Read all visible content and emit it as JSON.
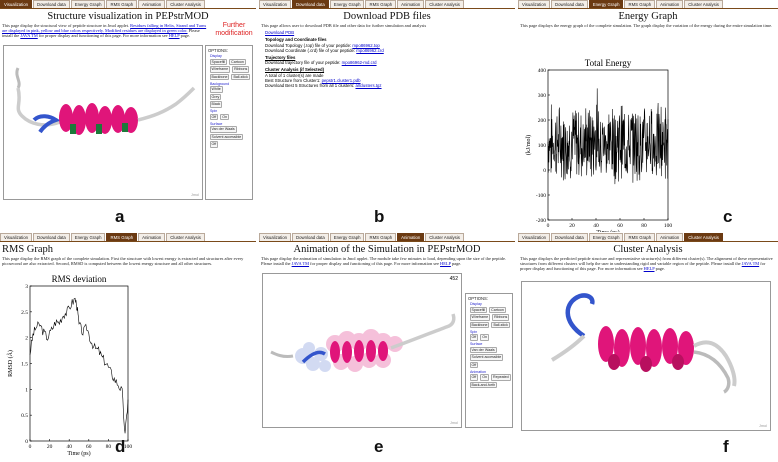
{
  "tabs": [
    "Visualization",
    "Download data",
    "Energy Graph",
    "RMS Graph",
    "Animation",
    "Cluster Analysis"
  ],
  "panel_a": {
    "label": "a",
    "active_tab": 0,
    "title": "Structure visualization in PEPstrMOD",
    "desc_1": "This page display the structural view of peptide structure in Jmol applet.",
    "desc_link_1": "Residues falling in Helix, Strand and Turns are displayed in pink, yellow and blue colors respectively. Modified residues are displayed in green color.",
    "desc_2": " Please install the ",
    "desc_link_2": "JAVA TM",
    "desc_3": " for proper display and functioning of this page. For more information see ",
    "desc_link_3": "HELP",
    "desc_4": " page.",
    "annotation": "Further modification",
    "jmol": "Jmol"
  },
  "options": {
    "title": "OPTIONS:",
    "display": "Display",
    "spacefill": "Spacefill",
    "cartoon": "Cartoon",
    "wireframe": "Wireframe",
    "ribbons": "Ribbons",
    "backbone": "Backbone",
    "ballstick": "Ball-stick",
    "background": "Background",
    "white": "White",
    "grey": "Grey",
    "black": "Black",
    "spin": "Spin",
    "off": "Off",
    "on": "On",
    "surface": "Surface",
    "vdw": "Van der Waals",
    "solvent": "Solvent accessible",
    "animation": "Animation",
    "repeated": "Repeated",
    "backforth": "Back-and-forth"
  },
  "panel_b": {
    "label": "b",
    "active_tab": 1,
    "title": "Download PDB files",
    "desc": "This page allows user to download PDB file and other data for further simulation and analysis",
    "pdb_head": "Download PDB",
    "topo_head": "Topology and Coordinate files",
    "topo_1": "Download Topology (.top) file of your peptide: ",
    "topo_1_link": "mpo86962.top",
    "topo_2": "Download Coordinate (.crd) file of your peptide: ",
    "topo_2_link": "mpo86962.crd",
    "traj_head": "Trajectory files",
    "traj_1": "Download trajectory file of your peptide: ",
    "traj_1_link": "mpo86962-md.crd",
    "clus_head": "Cluster Analysis (if Selected)",
    "clus_1": "A total of 1 cluster(s) are made",
    "clus_2": "Best Structure from Cluster1: ",
    "clus_2_link": "pepstr1.cluster1.pdb",
    "clus_3": "Download Best 5 Structures from all 1 clusters: ",
    "clus_3_link": "allclusters.tgz"
  },
  "panel_c": {
    "label": "c",
    "active_tab": 2,
    "title": "Energy Graph",
    "desc": "This page displays the energy graph of the complete simulation. The graph display the variation of the energy during the entire simulation time."
  },
  "panel_d": {
    "label": "d",
    "active_tab": 3,
    "title": "RMS Graph",
    "desc": "This page display the RMS graph of the complete simulation. First the structure with lowest energy is extracted and structures after every picosecond are also extracted. Second, RMSD is computed between the lowest energy structure and all other structures."
  },
  "panel_e": {
    "label": "e",
    "active_tab": 4,
    "title": "Animation of the Simulation in PEPstrMOD",
    "desc_1": "This page display the animation of simulation in Jmol applet. The module take few minutes to load, depending upon the size of the peptide. Please install the ",
    "desc_link_1": "JAVA TM",
    "desc_2": " for proper display and functioning of this page. For more information see ",
    "desc_link_2": "HELP",
    "desc_3": " page.",
    "frame": "452",
    "jmol": "Jmol"
  },
  "panel_f": {
    "label": "f",
    "active_tab": 5,
    "title": "Cluster Analysis",
    "desc_1": "This page displays the predicted peptide structure and representative structure(s) from different cluster(s). The alignment of these representative structures from different clusters will help the user in understanding rigid and variable region of the peptide. Please install the ",
    "desc_link_1": "JAVA TM",
    "desc_2": " for proper display and functioning of this page. For more information see ",
    "desc_link_2": "HELP",
    "desc_3": " page.",
    "jmol": "Jmol"
  },
  "chart_data": [
    {
      "type": "line",
      "title": "Total Energy",
      "xlabel": "Time (ps)",
      "ylabel": "(kJ/mol)",
      "xlim": [
        0,
        100
      ],
      "ylim": [
        -200,
        400
      ],
      "xticks": [
        0,
        20,
        40,
        60,
        80,
        100
      ],
      "yticks": [
        -200,
        -100,
        0,
        100,
        200,
        300,
        400
      ],
      "colors": {
        "line": "#000000"
      }
    },
    {
      "type": "line",
      "title": "RMS deviation",
      "xlabel": "Time (ps)",
      "ylabel": "RMSD (Å)",
      "xlim": [
        0,
        100
      ],
      "ylim": [
        0,
        3
      ],
      "xticks": [
        0,
        20,
        40,
        60,
        80,
        100
      ],
      "yticks": [
        0,
        0.5,
        1,
        1.5,
        2,
        2.5,
        3
      ],
      "x": [
        0,
        3,
        6,
        10,
        14,
        18,
        22,
        26,
        30,
        34,
        38,
        42,
        46,
        48,
        50,
        54,
        58,
        62,
        66,
        70,
        74,
        78,
        82,
        86,
        90,
        94,
        97,
        100
      ],
      "y": [
        1.7,
        2.05,
        2.2,
        2.25,
        2.1,
        2.0,
        2.15,
        2.3,
        2.3,
        2.45,
        2.5,
        2.65,
        2.75,
        2.6,
        2.25,
        2.1,
        2.2,
        1.95,
        1.8,
        1.75,
        1.6,
        1.5,
        1.35,
        1.2,
        1.1,
        0.95,
        0.1,
        0.8
      ],
      "colors": {
        "line": "#000000"
      }
    }
  ]
}
